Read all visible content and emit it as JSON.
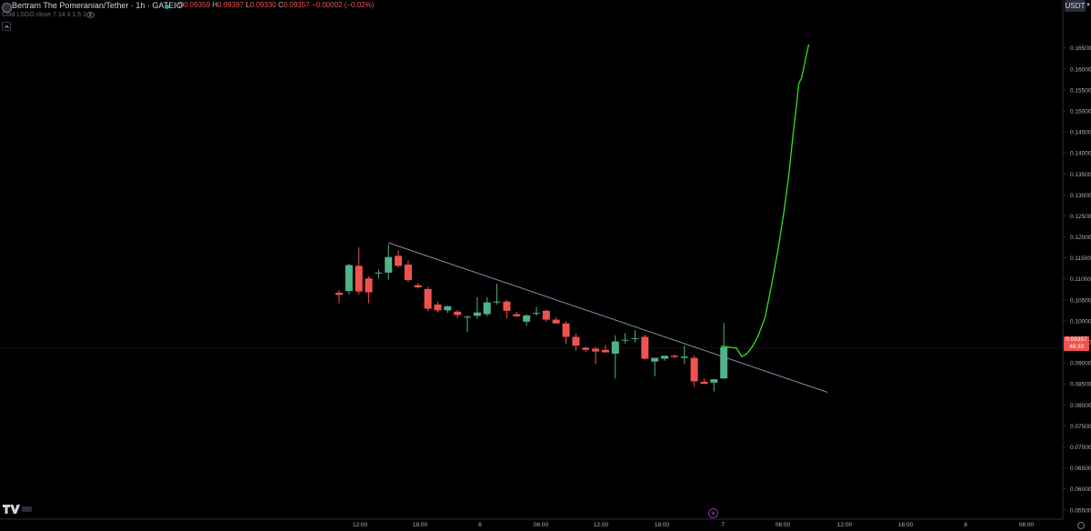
{
  "header": {
    "symbol_title": "Bertram The Pomeranian/Tether · 1h · GATEIO",
    "ohlc": [
      {
        "key": "O",
        "value": "0.09359"
      },
      {
        "key": "H",
        "value": "0.09397"
      },
      {
        "key": "L",
        "value": "0.09330"
      },
      {
        "key": "C",
        "value": "0.09357"
      }
    ],
    "change": "−0.00002 (−0.02%)",
    "indicator": "Cold LSGO close 7 14 3 1.5 2 7"
  },
  "toolbar": {
    "currency": "USDT"
  },
  "price_tag": {
    "price": "0.09357",
    "countdown": "48:39"
  },
  "colors": {
    "background": "#000000",
    "up": "#4fb38a",
    "down": "#ef5350",
    "trendline": "#8d8fb8",
    "projection": "#33e21f",
    "axis_text": "#b2b5be"
  },
  "chart_data": {
    "type": "candlestick",
    "symbol": "Bertram The Pomeranian/Tether",
    "interval": "1h",
    "exchange": "GATEIO",
    "price_axis": {
      "min": 0.05495,
      "max": 0.1658,
      "ticks": [
        "0.16500",
        "0.16000",
        "0.15500",
        "0.15000",
        "0.14500",
        "0.14000",
        "0.13500",
        "0.13000",
        "0.12500",
        "0.12000",
        "0.11500",
        "0.11000",
        "0.10500",
        "0.10000",
        "0.09500",
        "0.09000",
        "0.08500",
        "0.08000",
        "0.07500",
        "0.07000",
        "0.06500",
        "0.06000",
        "0.05500"
      ]
    },
    "time_axis": {
      "labels": [
        "12:00",
        "18:00",
        "6",
        "06:00",
        "12:00",
        "18:00",
        "7",
        "06:00",
        "12:00",
        "18:00",
        "8",
        "06:00"
      ]
    },
    "candles": [
      {
        "o": 0.1067,
        "h": 0.1073,
        "l": 0.1042,
        "c": 0.1062
      },
      {
        "o": 0.1071,
        "h": 0.1136,
        "l": 0.1063,
        "c": 0.1133
      },
      {
        "o": 0.1131,
        "h": 0.1175,
        "l": 0.1063,
        "c": 0.107
      },
      {
        "o": 0.1101,
        "h": 0.1106,
        "l": 0.1042,
        "c": 0.1068
      },
      {
        "o": 0.1113,
        "h": 0.1122,
        "l": 0.1101,
        "c": 0.1115
      },
      {
        "o": 0.1115,
        "h": 0.1182,
        "l": 0.1098,
        "c": 0.1152
      },
      {
        "o": 0.1155,
        "h": 0.1168,
        "l": 0.1127,
        "c": 0.1131
      },
      {
        "o": 0.1134,
        "h": 0.1144,
        "l": 0.1093,
        "c": 0.1097
      },
      {
        "o": 0.1085,
        "h": 0.109,
        "l": 0.1077,
        "c": 0.108
      },
      {
        "o": 0.1076,
        "h": 0.1081,
        "l": 0.1023,
        "c": 0.1029
      },
      {
        "o": 0.1039,
        "h": 0.1046,
        "l": 0.102,
        "c": 0.1025
      },
      {
        "o": 0.1025,
        "h": 0.1036,
        "l": 0.1019,
        "c": 0.1035
      },
      {
        "o": 0.1022,
        "h": 0.1026,
        "l": 0.1007,
        "c": 0.1014
      },
      {
        "o": 0.101,
        "h": 0.1013,
        "l": 0.0974,
        "c": 0.101
      },
      {
        "o": 0.1012,
        "h": 0.1056,
        "l": 0.1005,
        "c": 0.102
      },
      {
        "o": 0.1016,
        "h": 0.1056,
        "l": 0.1011,
        "c": 0.1044
      },
      {
        "o": 0.1045,
        "h": 0.1088,
        "l": 0.1039,
        "c": 0.1046
      },
      {
        "o": 0.1046,
        "h": 0.105,
        "l": 0.1006,
        "c": 0.1024
      },
      {
        "o": 0.1016,
        "h": 0.1022,
        "l": 0.1009,
        "c": 0.1011
      },
      {
        "o": 0.0998,
        "h": 0.1016,
        "l": 0.0988,
        "c": 0.1013
      },
      {
        "o": 0.1018,
        "h": 0.1034,
        "l": 0.1012,
        "c": 0.1019
      },
      {
        "o": 0.1024,
        "h": 0.1027,
        "l": 0.0998,
        "c": 0.1003
      },
      {
        "o": 0.1003,
        "h": 0.1009,
        "l": 0.0996,
        "c": 0.0994
      },
      {
        "o": 0.0994,
        "h": 0.0999,
        "l": 0.0945,
        "c": 0.0962
      },
      {
        "o": 0.0962,
        "h": 0.097,
        "l": 0.0929,
        "c": 0.0941
      },
      {
        "o": 0.0936,
        "h": 0.0939,
        "l": 0.0926,
        "c": 0.0931
      },
      {
        "o": 0.0934,
        "h": 0.0938,
        "l": 0.0897,
        "c": 0.0927
      },
      {
        "o": 0.0931,
        "h": 0.0943,
        "l": 0.0925,
        "c": 0.0925
      },
      {
        "o": 0.0922,
        "h": 0.0966,
        "l": 0.0863,
        "c": 0.0951
      },
      {
        "o": 0.0953,
        "h": 0.0971,
        "l": 0.0946,
        "c": 0.0955
      },
      {
        "o": 0.0957,
        "h": 0.0978,
        "l": 0.0949,
        "c": 0.0959
      },
      {
        "o": 0.0962,
        "h": 0.0967,
        "l": 0.0908,
        "c": 0.091
      },
      {
        "o": 0.0903,
        "h": 0.0911,
        "l": 0.0868,
        "c": 0.0912
      },
      {
        "o": 0.091,
        "h": 0.0915,
        "l": 0.0905,
        "c": 0.0917
      },
      {
        "o": 0.0917,
        "h": 0.092,
        "l": 0.0912,
        "c": 0.0914
      },
      {
        "o": 0.0912,
        "h": 0.0941,
        "l": 0.0898,
        "c": 0.0915
      },
      {
        "o": 0.0912,
        "h": 0.0918,
        "l": 0.0843,
        "c": 0.0856
      },
      {
        "o": 0.0855,
        "h": 0.0862,
        "l": 0.085,
        "c": 0.085
      },
      {
        "o": 0.0853,
        "h": 0.0861,
        "l": 0.0832,
        "c": 0.0861
      },
      {
        "o": 0.0863,
        "h": 0.0995,
        "l": 0.0862,
        "c": 0.0937
      }
    ],
    "trendline": {
      "from": {
        "bar": 5,
        "price": 0.1186
      },
      "to": {
        "bar": 49.5,
        "price": 0.083
      }
    },
    "projection": [
      {
        "bar": 38.7,
        "price": 0.094
      },
      {
        "bar": 40.3,
        "price": 0.0935
      },
      {
        "bar": 40.8,
        "price": 0.0915
      },
      {
        "bar": 41.3,
        "price": 0.0921
      },
      {
        "bar": 41.9,
        "price": 0.0939
      },
      {
        "bar": 42.5,
        "price": 0.0965
      },
      {
        "bar": 43.2,
        "price": 0.101
      },
      {
        "bar": 43.8,
        "price": 0.108
      },
      {
        "bar": 44.5,
        "price": 0.117
      },
      {
        "bar": 45.1,
        "price": 0.126
      },
      {
        "bar": 45.6,
        "price": 0.135
      },
      {
        "bar": 46.0,
        "price": 0.144
      },
      {
        "bar": 46.4,
        "price": 0.152
      },
      {
        "bar": 46.6,
        "price": 0.1565
      },
      {
        "bar": 46.9,
        "price": 0.158
      },
      {
        "bar": 47.3,
        "price": 0.1625
      },
      {
        "bar": 47.6,
        "price": 0.1658
      }
    ],
    "current_price": 0.09357
  }
}
